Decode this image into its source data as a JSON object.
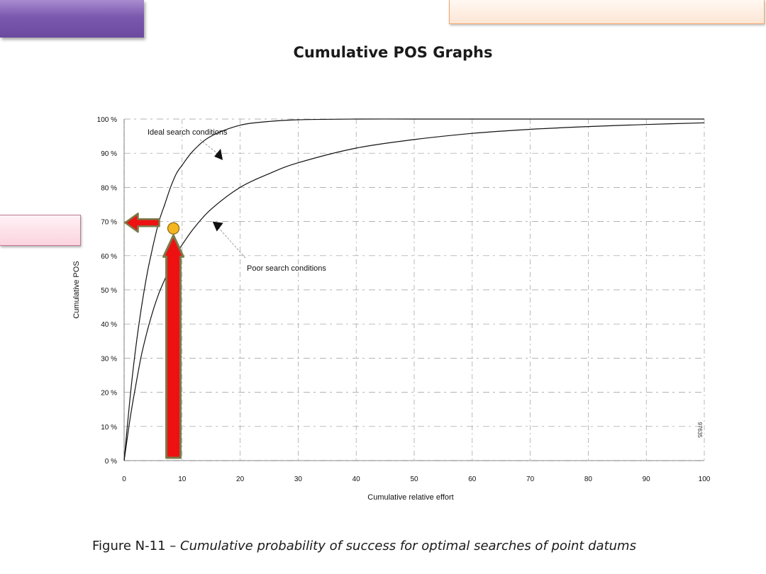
{
  "slide": {
    "title": "Cumulative POS Graphs",
    "caption_prefix": "Figure N-11",
    "caption_dash": " – ",
    "caption_italic": "Cumulative probability of success for optimal searches of point datums"
  },
  "colors": {
    "purple_tab": "#7a58ad",
    "orange_box_border": "#f2a66a",
    "pink_box": "#fbd3df",
    "arrow_fill": "#ee1111",
    "arrow_stroke": "#7a7a4a",
    "marker_fill": "#f5b520",
    "curve": "#111111"
  },
  "chart_data": {
    "type": "line",
    "title": "",
    "xlabel": "Cumulative relative effort",
    "ylabel": "Cumulative POS",
    "xlim": [
      0,
      100
    ],
    "ylim": [
      0,
      100
    ],
    "x_ticks": [
      "0",
      "10",
      "20",
      "30",
      "40",
      "50",
      "60",
      "70",
      "80",
      "90",
      "100"
    ],
    "y_ticks": [
      "0 %",
      "10 %",
      "20 %",
      "30 %",
      "40 %",
      "50 %",
      "60 %",
      "70 %",
      "80 %",
      "90 %",
      "100 %"
    ],
    "series": [
      {
        "name": "Ideal search conditions",
        "x": [
          0,
          1,
          2,
          3,
          4,
          5,
          6,
          7,
          8,
          9,
          10,
          12,
          15,
          20,
          25,
          30,
          40,
          50,
          60,
          70,
          80,
          90,
          100
        ],
        "y": [
          0,
          18,
          33,
          45,
          55,
          63,
          70,
          75,
          80,
          84,
          86.5,
          90.9,
          95,
          98.2,
          99.3,
          99.8,
          100,
          100,
          100,
          100,
          100,
          100,
          100
        ]
      },
      {
        "name": "Poor search conditions",
        "x": [
          0,
          1,
          2,
          3,
          4,
          5,
          6,
          7,
          8,
          9,
          10,
          12,
          15,
          20,
          25,
          30,
          40,
          50,
          60,
          70,
          80,
          90,
          100
        ],
        "y": [
          0,
          12,
          22,
          31,
          38,
          44,
          49,
          53,
          57,
          60.5,
          63.2,
          68,
          73.6,
          80,
          84,
          87.2,
          91.5,
          94,
          95.8,
          97,
          97.8,
          98.4,
          98.9
        ]
      }
    ],
    "annotations": [
      {
        "text": "Ideal search conditions",
        "points_to_x": 17,
        "points_to_y": 88
      },
      {
        "text": "Poor search conditions",
        "points_to_x": 15,
        "points_to_y": 70
      }
    ],
    "highlight_point": {
      "x": 8.5,
      "y": 68
    },
    "stamp": "97635",
    "grid": true
  }
}
